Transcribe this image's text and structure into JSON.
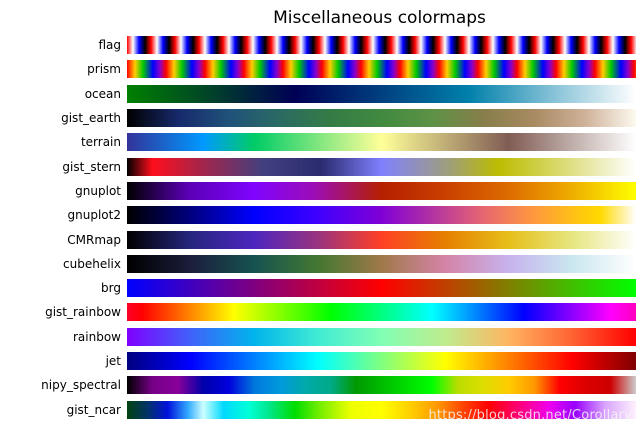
{
  "watermark": "https://blog.csdn.net/Corollary",
  "chart_data": {
    "type": "heatmap",
    "title": "Miscellaneous colormaps",
    "rows": [
      {
        "name": "flag",
        "repeat": true,
        "stops": [
          {
            "color": "#ff0000",
            "pos": "0px"
          },
          {
            "color": "#ffffff",
            "pos": "6px"
          },
          {
            "color": "#0000ff",
            "pos": "12px"
          },
          {
            "color": "#000000",
            "pos": "18px"
          },
          {
            "color": "#ff0000",
            "pos": "24px"
          }
        ]
      },
      {
        "name": "prism",
        "repeat": true,
        "stops": [
          {
            "color": "#ff0000",
            "pos": "0px"
          },
          {
            "color": "#ffcc00",
            "pos": "8px"
          },
          {
            "color": "#00cc00",
            "pos": "16px"
          },
          {
            "color": "#0000ff",
            "pos": "26px"
          },
          {
            "color": "#8800cc",
            "pos": "33px"
          },
          {
            "color": "#ff0000",
            "pos": "39px"
          }
        ]
      },
      {
        "name": "ocean",
        "repeat": false,
        "stops": [
          {
            "color": "#008000",
            "pos": "0%"
          },
          {
            "color": "#00402b",
            "pos": "17%"
          },
          {
            "color": "#000055",
            "pos": "33%"
          },
          {
            "color": "#004080",
            "pos": "50%"
          },
          {
            "color": "#0080aa",
            "pos": "67%"
          },
          {
            "color": "#80bfd5",
            "pos": "83%"
          },
          {
            "color": "#ffffff",
            "pos": "100%"
          }
        ]
      },
      {
        "name": "gist_earth",
        "repeat": false,
        "stops": [
          {
            "color": "#000000",
            "pos": "0%"
          },
          {
            "color": "#17296b",
            "pos": "10%"
          },
          {
            "color": "#1f527a",
            "pos": "20%"
          },
          {
            "color": "#2a6b63",
            "pos": "30%"
          },
          {
            "color": "#337c46",
            "pos": "40%"
          },
          {
            "color": "#408a40",
            "pos": "50%"
          },
          {
            "color": "#5d9245",
            "pos": "60%"
          },
          {
            "color": "#877e4a",
            "pos": "70%"
          },
          {
            "color": "#a88a62",
            "pos": "80%"
          },
          {
            "color": "#cfb29a",
            "pos": "90%"
          },
          {
            "color": "#fdfaef",
            "pos": "100%"
          }
        ]
      },
      {
        "name": "terrain",
        "repeat": false,
        "stops": [
          {
            "color": "#333399",
            "pos": "0%"
          },
          {
            "color": "#0099ff",
            "pos": "15%"
          },
          {
            "color": "#00cc66",
            "pos": "25%"
          },
          {
            "color": "#ffff99",
            "pos": "50%"
          },
          {
            "color": "#805c54",
            "pos": "75%"
          },
          {
            "color": "#ffffff",
            "pos": "100%"
          }
        ]
      },
      {
        "name": "gist_stern",
        "repeat": false,
        "stops": [
          {
            "color": "#000000",
            "pos": "0%"
          },
          {
            "color": "#ff0e1c",
            "pos": "5%"
          },
          {
            "color": "#a2264c",
            "pos": "15%"
          },
          {
            "color": "#404080",
            "pos": "27%"
          },
          {
            "color": "#2a2a6e",
            "pos": "38%"
          },
          {
            "color": "#8080ff",
            "pos": "50%"
          },
          {
            "color": "#9e9e7e",
            "pos": "63%"
          },
          {
            "color": "#bcbc00",
            "pos": "73%"
          },
          {
            "color": "#d9d96e",
            "pos": "85%"
          },
          {
            "color": "#ffffff",
            "pos": "100%"
          }
        ]
      },
      {
        "name": "gnuplot",
        "repeat": false,
        "stops": [
          {
            "color": "#000000",
            "pos": "0%"
          },
          {
            "color": "#5a00b4",
            "pos": "12%"
          },
          {
            "color": "#8004ff",
            "pos": "25%"
          },
          {
            "color": "#9c0db4",
            "pos": "37%"
          },
          {
            "color": "#b42000",
            "pos": "50%"
          },
          {
            "color": "#c93e00",
            "pos": "62%"
          },
          {
            "color": "#dd6b00",
            "pos": "75%"
          },
          {
            "color": "#eeab00",
            "pos": "87%"
          },
          {
            "color": "#ffff00",
            "pos": "100%"
          }
        ]
      },
      {
        "name": "gnuplot2",
        "repeat": false,
        "stops": [
          {
            "color": "#000000",
            "pos": "0%"
          },
          {
            "color": "#00007a",
            "pos": "12%"
          },
          {
            "color": "#0000ff",
            "pos": "25%"
          },
          {
            "color": "#3d00ff",
            "pos": "37%"
          },
          {
            "color": "#8000d6",
            "pos": "50%"
          },
          {
            "color": "#b333a3",
            "pos": "60%"
          },
          {
            "color": "#e66670",
            "pos": "70%"
          },
          {
            "color": "#ff993d",
            "pos": "80%"
          },
          {
            "color": "#ffcc0a",
            "pos": "90%"
          },
          {
            "color": "#ffd900",
            "pos": "93%"
          },
          {
            "color": "#ffffff",
            "pos": "100%"
          }
        ]
      },
      {
        "name": "CMRmap",
        "repeat": false,
        "stops": [
          {
            "color": "#000000",
            "pos": "0%"
          },
          {
            "color": "#26267f",
            "pos": "12.5%"
          },
          {
            "color": "#4d26bf",
            "pos": "25%"
          },
          {
            "color": "#99337f",
            "pos": "37.5%"
          },
          {
            "color": "#ff4026",
            "pos": "50%"
          },
          {
            "color": "#e68000",
            "pos": "62.5%"
          },
          {
            "color": "#e6bf1a",
            "pos": "75%"
          },
          {
            "color": "#e6e680",
            "pos": "87.5%"
          },
          {
            "color": "#ffffff",
            "pos": "100%"
          }
        ]
      },
      {
        "name": "cubehelix",
        "repeat": false,
        "stops": [
          {
            "color": "#000000",
            "pos": "0%"
          },
          {
            "color": "#1b1d3b",
            "pos": "12.5%"
          },
          {
            "color": "#165351",
            "pos": "25%"
          },
          {
            "color": "#437731",
            "pos": "37.5%"
          },
          {
            "color": "#a07949",
            "pos": "50%"
          },
          {
            "color": "#d483a7",
            "pos": "62.5%"
          },
          {
            "color": "#c7b3ed",
            "pos": "75%"
          },
          {
            "color": "#cae7f0",
            "pos": "87.5%"
          },
          {
            "color": "#ffffff",
            "pos": "100%"
          }
        ]
      },
      {
        "name": "brg",
        "repeat": false,
        "stops": [
          {
            "color": "#0000ff",
            "pos": "0%"
          },
          {
            "color": "#ff0000",
            "pos": "50%"
          },
          {
            "color": "#00ff00",
            "pos": "100%"
          }
        ]
      },
      {
        "name": "gist_rainbow",
        "repeat": false,
        "stops": [
          {
            "color": "#ff0029",
            "pos": "0%"
          },
          {
            "color": "#ff0000",
            "pos": "3%"
          },
          {
            "color": "#ffff00",
            "pos": "21%"
          },
          {
            "color": "#00ff00",
            "pos": "40%"
          },
          {
            "color": "#00ffff",
            "pos": "60%"
          },
          {
            "color": "#0000ff",
            "pos": "78%"
          },
          {
            "color": "#ff00ff",
            "pos": "95%"
          },
          {
            "color": "#ff00bf",
            "pos": "100%"
          }
        ]
      },
      {
        "name": "rainbow",
        "repeat": false,
        "stops": [
          {
            "color": "#8000ff",
            "pos": "0%"
          },
          {
            "color": "#4062fa",
            "pos": "12.5%"
          },
          {
            "color": "#00b4ec",
            "pos": "25%"
          },
          {
            "color": "#40ecd4",
            "pos": "37.5%"
          },
          {
            "color": "#80ffb4",
            "pos": "50%"
          },
          {
            "color": "#bfec8e",
            "pos": "62.5%"
          },
          {
            "color": "#ffb461",
            "pos": "75%"
          },
          {
            "color": "#ff6232",
            "pos": "87.5%"
          },
          {
            "color": "#ff0000",
            "pos": "100%"
          }
        ]
      },
      {
        "name": "jet",
        "repeat": false,
        "stops": [
          {
            "color": "#000080",
            "pos": "0%"
          },
          {
            "color": "#0000ff",
            "pos": "12.5%"
          },
          {
            "color": "#00ffff",
            "pos": "37.5%"
          },
          {
            "color": "#ffff00",
            "pos": "62.5%"
          },
          {
            "color": "#ff0000",
            "pos": "87.5%"
          },
          {
            "color": "#800000",
            "pos": "100%"
          }
        ]
      },
      {
        "name": "nipy_spectral",
        "repeat": false,
        "stops": [
          {
            "color": "#000000",
            "pos": "0%"
          },
          {
            "color": "#770088",
            "pos": "5%"
          },
          {
            "color": "#880099",
            "pos": "10%"
          },
          {
            "color": "#0000aa",
            "pos": "15%"
          },
          {
            "color": "#0000dd",
            "pos": "20%"
          },
          {
            "color": "#0077dd",
            "pos": "25%"
          },
          {
            "color": "#0099dd",
            "pos": "30%"
          },
          {
            "color": "#00aaaa",
            "pos": "35%"
          },
          {
            "color": "#00aa88",
            "pos": "40%"
          },
          {
            "color": "#009900",
            "pos": "45%"
          },
          {
            "color": "#00bb00",
            "pos": "50%"
          },
          {
            "color": "#00dd00",
            "pos": "55%"
          },
          {
            "color": "#00ff00",
            "pos": "60%"
          },
          {
            "color": "#bbdd00",
            "pos": "65%"
          },
          {
            "color": "#dddd00",
            "pos": "70%"
          },
          {
            "color": "#ffcc00",
            "pos": "75%"
          },
          {
            "color": "#ff9900",
            "pos": "80%"
          },
          {
            "color": "#ff0000",
            "pos": "85%"
          },
          {
            "color": "#dd0000",
            "pos": "90%"
          },
          {
            "color": "#cc0000",
            "pos": "95%"
          },
          {
            "color": "#cccccc",
            "pos": "100%"
          }
        ]
      },
      {
        "name": "gist_ncar",
        "repeat": false,
        "stops": [
          {
            "color": "#00420f",
            "pos": "0%"
          },
          {
            "color": "#003366",
            "pos": "4%"
          },
          {
            "color": "#0011dd",
            "pos": "8%"
          },
          {
            "color": "#33aaff",
            "pos": "12%"
          },
          {
            "color": "#ccffff",
            "pos": "15%"
          },
          {
            "color": "#00d9ff",
            "pos": "19%"
          },
          {
            "color": "#00ffd5",
            "pos": "24%"
          },
          {
            "color": "#00e68a",
            "pos": "28%"
          },
          {
            "color": "#00dd00",
            "pos": "33%"
          },
          {
            "color": "#77ee00",
            "pos": "38%"
          },
          {
            "color": "#eeff00",
            "pos": "44%"
          },
          {
            "color": "#ffff00",
            "pos": "50%"
          },
          {
            "color": "#ffcc00",
            "pos": "56%"
          },
          {
            "color": "#ff9900",
            "pos": "61%"
          },
          {
            "color": "#ff4400",
            "pos": "66%"
          },
          {
            "color": "#ff0000",
            "pos": "71%"
          },
          {
            "color": "#ff0077",
            "pos": "77%"
          },
          {
            "color": "#ee00ee",
            "pos": "83%"
          },
          {
            "color": "#9900ff",
            "pos": "88%"
          },
          {
            "color": "#d9a6ff",
            "pos": "94%"
          },
          {
            "color": "#fff0fd",
            "pos": "100%"
          }
        ]
      }
    ]
  }
}
